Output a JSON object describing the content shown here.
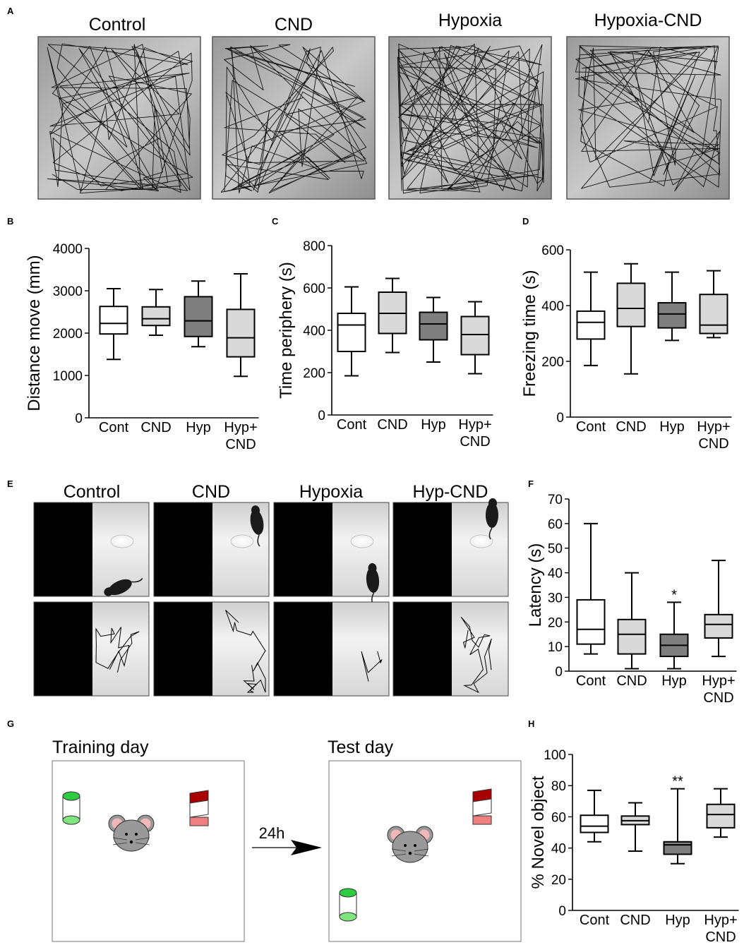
{
  "panels": {
    "A": {
      "letter": "A",
      "titles": [
        "Control",
        "CND",
        "Hypoxia",
        "Hypoxia-CND"
      ]
    },
    "E": {
      "letter": "E",
      "titles": [
        "Control",
        "CND",
        "Hypoxia",
        "Hyp-CND"
      ]
    },
    "G": {
      "letter": "G",
      "training_label": "Training day",
      "test_label": "Test day",
      "arrow_label": "24h",
      "colors": {
        "cylinder_fill": "#2ecc40",
        "cylinder_base": "#7fe57f",
        "box_top": "#a80000",
        "box_bottom": "#f08080",
        "mouse_body": "#999999",
        "mouse_ear": "#f2b8b8"
      }
    }
  },
  "chart_data": [
    {
      "panel": "B",
      "type": "box",
      "title": "",
      "ylabel": "Distance move (mm)",
      "ylim": [
        0,
        4000
      ],
      "yticks": [
        "0",
        "1000",
        "2000",
        "3000",
        "4000"
      ],
      "tick_values": [
        0,
        1000,
        2000,
        3000,
        4000
      ],
      "categories": [
        "Cont",
        "CND",
        "Hyp",
        "Hyp+\nCND"
      ],
      "fills": [
        "#ffffff",
        "#d9d9d9",
        "#7f7f7f",
        "#d9d9d9"
      ],
      "boxes": [
        {
          "min": 1380,
          "q1": 1980,
          "median": 2230,
          "q3": 2630,
          "max": 3050
        },
        {
          "min": 1950,
          "q1": 2180,
          "median": 2340,
          "q3": 2620,
          "max": 3030
        },
        {
          "min": 1680,
          "q1": 1920,
          "median": 2290,
          "q3": 2860,
          "max": 3230
        },
        {
          "min": 980,
          "q1": 1440,
          "median": 1890,
          "q3": 2560,
          "max": 3400
        }
      ],
      "annotations": [
        "",
        "",
        "",
        ""
      ]
    },
    {
      "panel": "C",
      "type": "box",
      "title": "",
      "ylabel": "Time periphery (s)",
      "ylim": [
        0,
        800
      ],
      "yticks": [
        "0",
        "200",
        "400",
        "600",
        "800"
      ],
      "tick_values": [
        0,
        200,
        400,
        600,
        800
      ],
      "categories": [
        "Cont",
        "CND",
        "Hyp",
        "Hyp+\nCND"
      ],
      "fills": [
        "#ffffff",
        "#d9d9d9",
        "#7f7f7f",
        "#d9d9d9"
      ],
      "boxes": [
        {
          "min": 185,
          "q1": 300,
          "median": 425,
          "q3": 480,
          "max": 605
        },
        {
          "min": 295,
          "q1": 385,
          "median": 480,
          "q3": 580,
          "max": 645
        },
        {
          "min": 250,
          "q1": 355,
          "median": 430,
          "q3": 485,
          "max": 555
        },
        {
          "min": 195,
          "q1": 285,
          "median": 380,
          "q3": 465,
          "max": 535
        }
      ],
      "annotations": [
        "",
        "",
        "",
        ""
      ]
    },
    {
      "panel": "D",
      "type": "box",
      "title": "",
      "ylabel": "Freezing time (s)",
      "ylim": [
        0,
        600
      ],
      "yticks": [
        "0",
        "200",
        "400",
        "600"
      ],
      "tick_values": [
        0,
        200,
        400,
        600
      ],
      "categories": [
        "Cont",
        "CND",
        "Hyp",
        "Hyp+\nCND"
      ],
      "fills": [
        "#ffffff",
        "#d9d9d9",
        "#7f7f7f",
        "#d9d9d9"
      ],
      "boxes": [
        {
          "min": 185,
          "q1": 280,
          "median": 340,
          "q3": 380,
          "max": 520
        },
        {
          "min": 155,
          "q1": 325,
          "median": 390,
          "q3": 480,
          "max": 550
        },
        {
          "min": 275,
          "q1": 320,
          "median": 370,
          "q3": 410,
          "max": 520
        },
        {
          "min": 285,
          "q1": 300,
          "median": 330,
          "q3": 440,
          "max": 525
        }
      ],
      "annotations": [
        "",
        "",
        "",
        ""
      ]
    },
    {
      "panel": "F",
      "type": "box",
      "title": "",
      "ylabel": "Latency (s)",
      "ylim": [
        0,
        70
      ],
      "yticks": [
        "0",
        "10",
        "20",
        "30",
        "40",
        "50",
        "60",
        "70"
      ],
      "tick_values": [
        0,
        10,
        20,
        30,
        40,
        50,
        60,
        70
      ],
      "categories": [
        "Cont",
        "CND",
        "Hyp",
        "Hyp+\nCND"
      ],
      "fills": [
        "#ffffff",
        "#d9d9d9",
        "#7f7f7f",
        "#d9d9d9"
      ],
      "boxes": [
        {
          "min": 7,
          "q1": 11,
          "median": 17,
          "q3": 29,
          "max": 60
        },
        {
          "min": 1,
          "q1": 7,
          "median": 15,
          "q3": 21,
          "max": 40
        },
        {
          "min": 1,
          "q1": 6,
          "median": 10.5,
          "q3": 15,
          "max": 28
        },
        {
          "min": 6,
          "q1": 13.5,
          "median": 19,
          "q3": 23,
          "max": 45
        }
      ],
      "annotations": [
        "",
        "",
        "*",
        ""
      ]
    },
    {
      "panel": "H",
      "type": "box",
      "title": "",
      "ylabel": "% Novel object",
      "ylim": [
        0,
        100
      ],
      "yticks": [
        "0",
        "20",
        "40",
        "60",
        "80",
        "100"
      ],
      "tick_values": [
        0,
        20,
        40,
        60,
        80,
        100
      ],
      "categories": [
        "Cont",
        "CND",
        "Hyp",
        "Hyp+\nCND"
      ],
      "fills": [
        "#ffffff",
        "#d9d9d9",
        "#7f7f7f",
        "#d9d9d9"
      ],
      "boxes": [
        {
          "min": 44,
          "q1": 50,
          "median": 54,
          "q3": 61,
          "max": 77
        },
        {
          "min": 38,
          "q1": 55,
          "median": 57.5,
          "q3": 60.5,
          "max": 69
        },
        {
          "min": 30,
          "q1": 36,
          "median": 42,
          "q3": 44,
          "max": 78
        },
        {
          "min": 47,
          "q1": 53,
          "median": 61.5,
          "q3": 68,
          "max": 78
        }
      ],
      "annotations": [
        "",
        "",
        "**",
        ""
      ]
    }
  ]
}
